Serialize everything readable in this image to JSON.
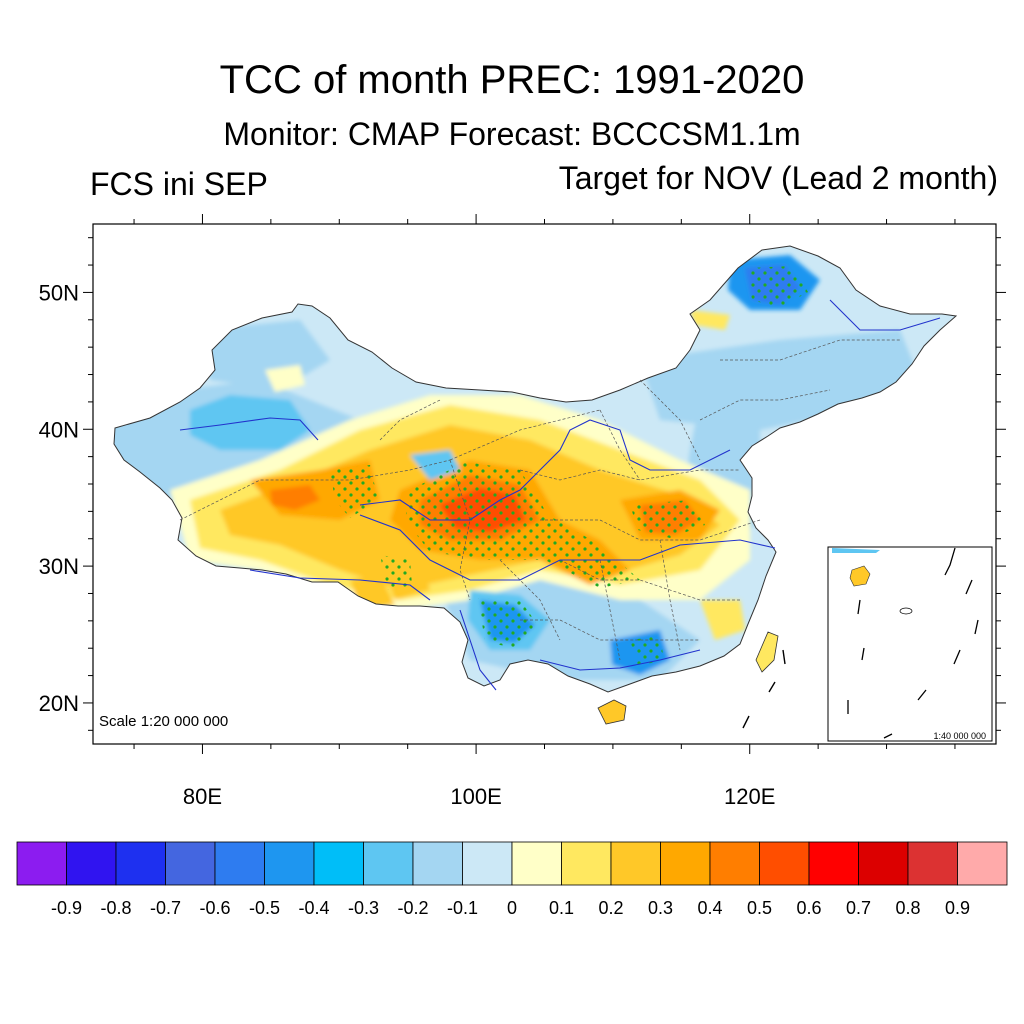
{
  "header": {
    "title": "TCC of month PREC: 1991-2020",
    "subtitle": "Monitor: CMAP   Forecast: BCCCSM1.1m",
    "left_label": "FCS ini SEP",
    "right_label": "Target for NOV (Lead 2 month)"
  },
  "map": {
    "scale_text": "Scale 1:20 000 000",
    "inset_scale_text": "1:40 000 000",
    "lat_labels": [
      "50N",
      "40N",
      "30N",
      "20N"
    ],
    "lon_labels": [
      "80E",
      "100E",
      "120E"
    ],
    "lon_range": [
      72,
      138
    ],
    "lat_range": [
      17,
      55
    ],
    "significance_dot_color": "#22aa22",
    "river_color": "#2233cc",
    "boundary_color": "#555555"
  },
  "colorbar": {
    "colors": [
      "#8c1cf0",
      "#3014f0",
      "#1e30f0",
      "#4466e0",
      "#2e7cf0",
      "#1e96f0",
      "#00bef8",
      "#5ec6f2",
      "#a4d6f2",
      "#cce8f6",
      "#ffffc8",
      "#ffe860",
      "#ffc828",
      "#ffa800",
      "#ff7e00",
      "#ff4e00",
      "#ff0000",
      "#dc0000",
      "#dc3232",
      "#ffaaaa"
    ],
    "labels": [
      "-0.9",
      "-0.8",
      "-0.7",
      "-0.6",
      "-0.5",
      "-0.4",
      "-0.3",
      "-0.2",
      "-0.1",
      "0",
      "0.1",
      "0.2",
      "0.3",
      "0.4",
      "0.5",
      "0.6",
      "0.7",
      "0.8",
      "0.9"
    ]
  }
}
